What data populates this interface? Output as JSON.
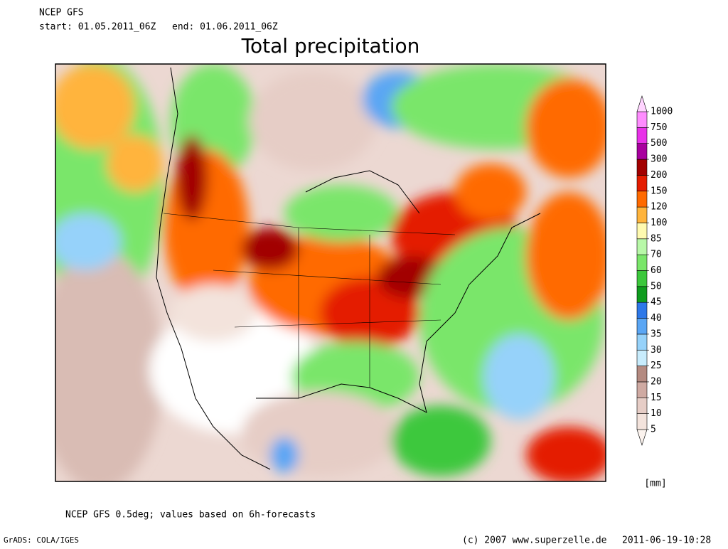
{
  "header": {
    "model": "NCEP GFS",
    "start": "start: 01.05.2011_06Z",
    "end": "end: 01.06.2011_06Z",
    "title": "Total precipitation"
  },
  "colorbar": {
    "levels": [
      5,
      10,
      15,
      20,
      25,
      30,
      35,
      40,
      45,
      50,
      60,
      70,
      85,
      100,
      120,
      150,
      200,
      300,
      500,
      750,
      1000
    ],
    "colors": [
      "#fbf3ee",
      "#f3e3dc",
      "#e6cdc6",
      "#cfaaa2",
      "#b48a80",
      "#c8ecfc",
      "#96d2fa",
      "#5aa6f4",
      "#2e78e8",
      "#0f9c1e",
      "#3cc83c",
      "#7ae66a",
      "#b8f8a8",
      "#fffab0",
      "#ffb43c",
      "#ff6a00",
      "#e41c00",
      "#a20000",
      "#a8009e",
      "#e832e8",
      "#ff8cff",
      "#ffd4ff"
    ],
    "unit": "[mm]"
  },
  "footer": {
    "note": "NCEP GFS 0.5deg; values based on 6h-forecasts",
    "software": "GrADS: COLA/IGES",
    "copyright": "(c) 2007 www.superzelle.de",
    "timestamp": "2011-06-19-10:28"
  }
}
